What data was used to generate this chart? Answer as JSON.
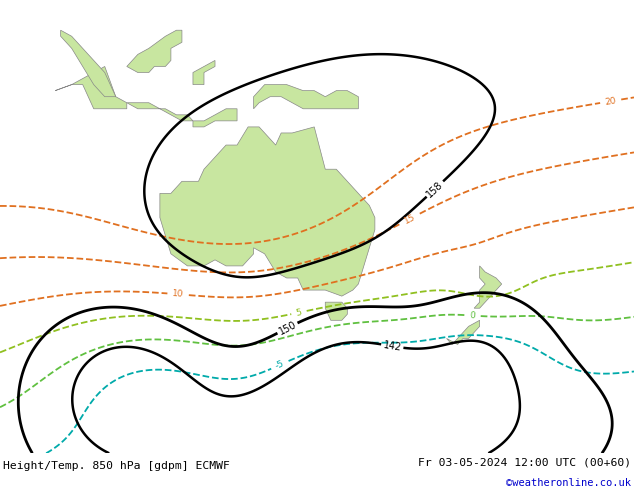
{
  "title_left": "Height/Temp. 850 hPa [gdpm] ECMWF",
  "title_right": "Fr 03-05-2024 12:00 UTC (00+60)",
  "credit": "©weatheronline.co.uk",
  "bg_color": "#d8d8d8",
  "land_color": "#c8e6a0",
  "bottom_text_color": "#000000",
  "credit_color": "#0000cc"
}
